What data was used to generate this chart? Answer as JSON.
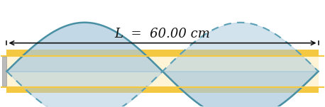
{
  "tube_color": "#F5C842",
  "tube_inner_color": "#FFF5D6",
  "wave_fill_color": "#A8C8DC",
  "wave_line_color": "#4A90A4",
  "wave_dashed_color": "#5BA0B5",
  "background_color": "#ffffff",
  "title_text": "L  =  60.00 cm",
  "title_fontsize": 13,
  "arrow_color": "#111111",
  "n_cycles": 2,
  "amplitude": 1.0,
  "tube_thickness": 0.32,
  "tube_wall_thickness": 0.12,
  "fig_width": 4.58,
  "fig_height": 1.51,
  "dpi": 100
}
